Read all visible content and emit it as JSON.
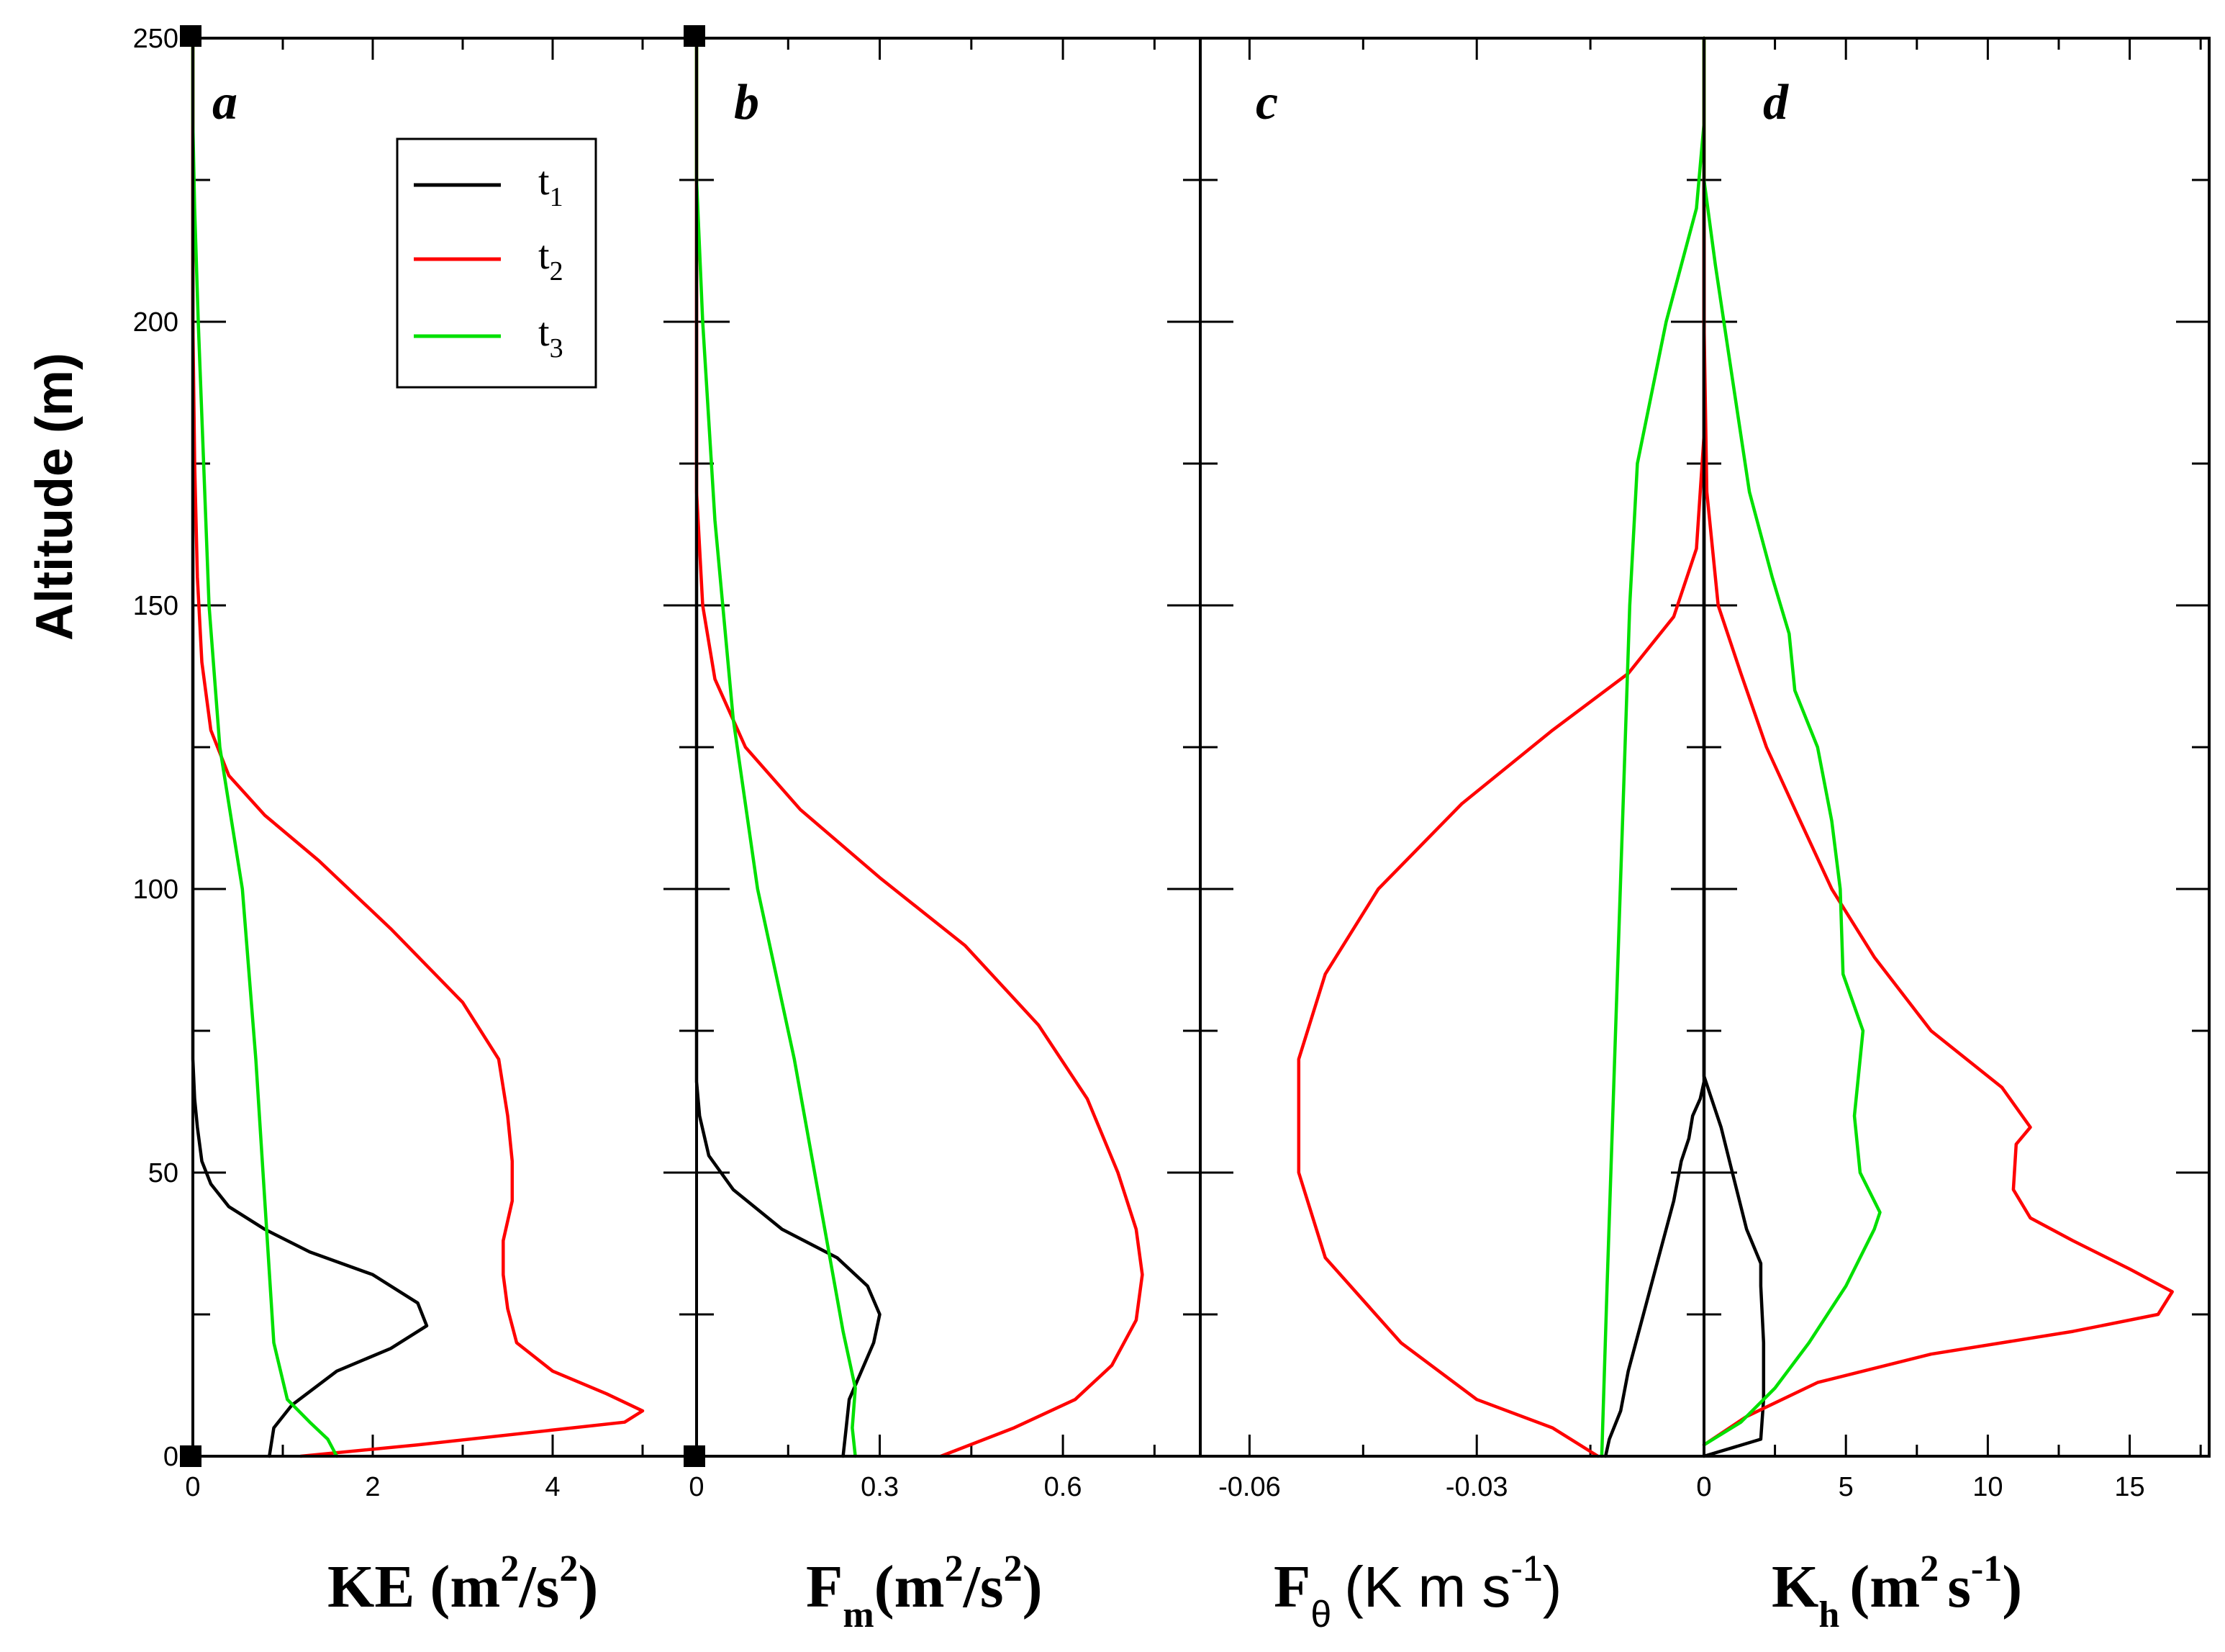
{
  "chart_data": {
    "type": "line",
    "ylabel": "Altitude (m)",
    "ylim": [
      0,
      250
    ],
    "yticks": [
      "0",
      "50",
      "100",
      "150",
      "200",
      "250"
    ],
    "legend": {
      "placement": "panel-a-top-right",
      "entries": [
        {
          "name": "t",
          "sub": "1",
          "color": "#000000"
        },
        {
          "name": "t",
          "sub": "2",
          "color": "#ff0000"
        },
        {
          "name": "t",
          "sub": "3",
          "color": "#00e000"
        }
      ]
    },
    "panels": [
      {
        "id": "a",
        "letter": "a",
        "xlabel_main": "KE (m",
        "xlabel_sup1": "2",
        "xlabel_mid": "/s",
        "xlabel_sup2": "2",
        "xlabel_end": ")",
        "xlim": [
          0,
          5.6
        ],
        "xticks": [
          0,
          2,
          4
        ],
        "xtick_labels": [
          "0",
          "2",
          "4"
        ],
        "series": [
          {
            "name": "t1",
            "color": "#000000",
            "points": [
              [
                0.85,
                0
              ],
              [
                0.9,
                5
              ],
              [
                1.1,
                9
              ],
              [
                1.6,
                15
              ],
              [
                2.2,
                19
              ],
              [
                2.6,
                23
              ],
              [
                2.5,
                27
              ],
              [
                2.0,
                32
              ],
              [
                1.3,
                36
              ],
              [
                0.8,
                40
              ],
              [
                0.4,
                44
              ],
              [
                0.2,
                48
              ],
              [
                0.1,
                52
              ],
              [
                0.05,
                58
              ],
              [
                0.02,
                63
              ],
              [
                0,
                70
              ],
              [
                0,
                250
              ]
            ]
          },
          {
            "name": "t2",
            "color": "#ff0000",
            "points": [
              [
                1.2,
                0
              ],
              [
                2.5,
                2
              ],
              [
                4.8,
                6
              ],
              [
                5.0,
                8
              ],
              [
                4.6,
                11
              ],
              [
                4.0,
                15
              ],
              [
                3.6,
                20
              ],
              [
                3.5,
                26
              ],
              [
                3.45,
                32
              ],
              [
                3.45,
                38
              ],
              [
                3.55,
                45
              ],
              [
                3.55,
                52
              ],
              [
                3.5,
                60
              ],
              [
                3.4,
                70
              ],
              [
                3.0,
                80
              ],
              [
                2.2,
                93
              ],
              [
                1.4,
                105
              ],
              [
                0.8,
                113
              ],
              [
                0.4,
                120
              ],
              [
                0.2,
                128
              ],
              [
                0.1,
                140
              ],
              [
                0.05,
                155
              ],
              [
                0.02,
                175
              ],
              [
                0,
                200
              ],
              [
                0,
                250
              ]
            ]
          },
          {
            "name": "t3",
            "color": "#00e000",
            "points": [
              [
                1.6,
                0
              ],
              [
                1.5,
                3
              ],
              [
                1.3,
                6
              ],
              [
                1.05,
                10
              ],
              [
                0.9,
                20
              ],
              [
                0.82,
                40
              ],
              [
                0.7,
                70
              ],
              [
                0.55,
                100
              ],
              [
                0.3,
                125
              ],
              [
                0.18,
                150
              ],
              [
                0.12,
                175
              ],
              [
                0.06,
                200
              ],
              [
                0.02,
                220
              ],
              [
                0,
                235
              ],
              [
                0,
                250
              ]
            ]
          }
        ]
      },
      {
        "id": "b",
        "letter": "b",
        "xlabel_main": "F",
        "xlabel_sub": "m",
        "xlabel_paren": "(m",
        "xlabel_sup1": "2",
        "xlabel_mid": "/s",
        "xlabel_sup2": "2",
        "xlabel_end": ")",
        "xlim": [
          0,
          0.825
        ],
        "xticks": [
          0,
          0.3,
          0.6
        ],
        "xtick_labels": [
          "0",
          "0.3",
          "0.6"
        ],
        "series": [
          {
            "name": "t1",
            "color": "#000000",
            "points": [
              [
                0.24,
                0
              ],
              [
                0.245,
                5
              ],
              [
                0.25,
                10
              ],
              [
                0.27,
                15
              ],
              [
                0.29,
                20
              ],
              [
                0.3,
                25
              ],
              [
                0.28,
                30
              ],
              [
                0.23,
                35
              ],
              [
                0.14,
                40
              ],
              [
                0.06,
                47
              ],
              [
                0.02,
                53
              ],
              [
                0.005,
                60
              ],
              [
                0,
                66
              ],
              [
                0,
                250
              ]
            ]
          },
          {
            "name": "t2",
            "color": "#ff0000",
            "points": [
              [
                0.4,
                0
              ],
              [
                0.52,
                5
              ],
              [
                0.62,
                10
              ],
              [
                0.68,
                16
              ],
              [
                0.72,
                24
              ],
              [
                0.73,
                32
              ],
              [
                0.72,
                40
              ],
              [
                0.69,
                50
              ],
              [
                0.64,
                63
              ],
              [
                0.56,
                76
              ],
              [
                0.44,
                90
              ],
              [
                0.3,
                102
              ],
              [
                0.17,
                114
              ],
              [
                0.08,
                125
              ],
              [
                0.03,
                137
              ],
              [
                0.01,
                150
              ],
              [
                0,
                170
              ],
              [
                0,
                250
              ]
            ]
          },
          {
            "name": "t3",
            "color": "#00e000",
            "points": [
              [
                0.26,
                0
              ],
              [
                0.255,
                5
              ],
              [
                0.26,
                12
              ],
              [
                0.24,
                22
              ],
              [
                0.21,
                40
              ],
              [
                0.16,
                70
              ],
              [
                0.1,
                100
              ],
              [
                0.06,
                130
              ],
              [
                0.03,
                165
              ],
              [
                0.01,
                200
              ],
              [
                0,
                225
              ],
              [
                0,
                250
              ]
            ]
          }
        ]
      },
      {
        "id": "c",
        "letter": "c",
        "xlabel_main": "F",
        "xlabel_sub": "θ",
        "xlabel_end": "(K m s",
        "xlabel_sup1": "-1",
        "xlabel_close": ")",
        "xlim": [
          -0.0665,
          0
        ],
        "xticks": [
          -0.06,
          -0.03,
          0
        ],
        "xtick_labels": [
          "-0.06",
          "-0.03",
          "0"
        ],
        "series": [
          {
            "name": "t1",
            "color": "#000000",
            "points": [
              [
                -0.013,
                0
              ],
              [
                -0.0125,
                3
              ],
              [
                -0.011,
                8
              ],
              [
                -0.01,
                15
              ],
              [
                -0.008,
                25
              ],
              [
                -0.006,
                35
              ],
              [
                -0.004,
                45
              ],
              [
                -0.003,
                52
              ],
              [
                -0.002,
                56
              ],
              [
                -0.0015,
                60
              ],
              [
                -0.0005,
                63
              ],
              [
                0,
                66
              ],
              [
                0,
                70
              ],
              [
                0,
                250
              ]
            ]
          },
          {
            "name": "t2",
            "color": "#ff0000",
            "points": [
              [
                -0.014,
                0
              ],
              [
                -0.02,
                5
              ],
              [
                -0.03,
                10
              ],
              [
                -0.04,
                20
              ],
              [
                -0.05,
                35
              ],
              [
                -0.0535,
                50
              ],
              [
                -0.0535,
                70
              ],
              [
                -0.05,
                85
              ],
              [
                -0.043,
                100
              ],
              [
                -0.032,
                115
              ],
              [
                -0.02,
                128
              ],
              [
                -0.01,
                138
              ],
              [
                -0.004,
                148
              ],
              [
                -0.001,
                160
              ],
              [
                0,
                180
              ],
              [
                0,
                210
              ],
              [
                0,
                250
              ]
            ]
          },
          {
            "name": "t3",
            "color": "#00e000",
            "points": [
              [
                -0.0135,
                0
              ],
              [
                -0.0128,
                30
              ],
              [
                -0.0118,
                70
              ],
              [
                -0.0108,
                110
              ],
              [
                -0.0098,
                150
              ],
              [
                -0.0088,
                175
              ],
              [
                -0.005,
                200
              ],
              [
                -0.001,
                220
              ],
              [
                0,
                235
              ],
              [
                0,
                250
              ]
            ]
          }
        ]
      },
      {
        "id": "d",
        "letter": "d",
        "xlabel_main": "K",
        "xlabel_sub": "h",
        "xlabel_paren": "(m",
        "xlabel_sup1": "2",
        "xlabel_mid": "s",
        "xlabel_sup2": "-1",
        "xlabel_end": ")",
        "xlim": [
          0,
          17.8
        ],
        "xticks": [
          0,
          5,
          10,
          15
        ],
        "xtick_labels": [
          "0",
          "5",
          "10",
          "15"
        ],
        "series": [
          {
            "name": "t1",
            "color": "#000000",
            "points": [
              [
                0,
                0
              ],
              [
                2,
                3
              ],
              [
                2.1,
                10
              ],
              [
                2.1,
                20
              ],
              [
                2.0,
                30
              ],
              [
                2.0,
                34
              ],
              [
                1.5,
                40
              ],
              [
                1.0,
                50
              ],
              [
                0.6,
                58
              ],
              [
                0.2,
                64
              ],
              [
                0,
                67
              ],
              [
                0,
                250
              ]
            ]
          },
          {
            "name": "t2",
            "color": "#ff0000",
            "points": [
              [
                0,
                2
              ],
              [
                1.5,
                7
              ],
              [
                4,
                13
              ],
              [
                8,
                18
              ],
              [
                13,
                22
              ],
              [
                16,
                25
              ],
              [
                16.5,
                29
              ],
              [
                15,
                33
              ],
              [
                13,
                38
              ],
              [
                11.5,
                42
              ],
              [
                10.9,
                47
              ],
              [
                11,
                55
              ],
              [
                11.5,
                58
              ],
              [
                10.5,
                65
              ],
              [
                8,
                75
              ],
              [
                6,
                88
              ],
              [
                4.5,
                100
              ],
              [
                3.3,
                113
              ],
              [
                2.2,
                125
              ],
              [
                1.3,
                138
              ],
              [
                0.5,
                150
              ],
              [
                0.1,
                170
              ],
              [
                0,
                200
              ],
              [
                0,
                220
              ],
              [
                0,
                250
              ]
            ]
          },
          {
            "name": "t3",
            "color": "#00e000",
            "points": [
              [
                0,
                2
              ],
              [
                1.3,
                6
              ],
              [
                2.5,
                12
              ],
              [
                3.7,
                20
              ],
              [
                5,
                30
              ],
              [
                6,
                40
              ],
              [
                6.2,
                43
              ],
              [
                5.5,
                50
              ],
              [
                5.3,
                60
              ],
              [
                5.6,
                75
              ],
              [
                4.9,
                85
              ],
              [
                4.8,
                100
              ],
              [
                4.5,
                112
              ],
              [
                4,
                125
              ],
              [
                3.2,
                135
              ],
              [
                3,
                145
              ],
              [
                2.4,
                155
              ],
              [
                1.6,
                170
              ],
              [
                1.0,
                190
              ],
              [
                0.4,
                210
              ],
              [
                0,
                225
              ],
              [
                0,
                250
              ]
            ]
          }
        ]
      }
    ]
  }
}
